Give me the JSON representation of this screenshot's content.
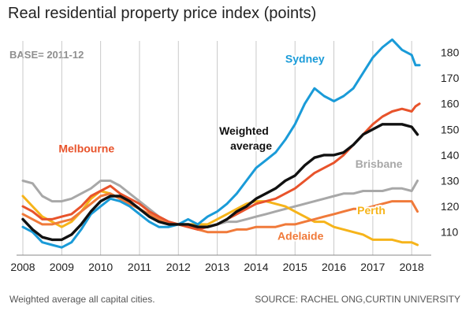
{
  "title": "Real residential property price index (points)",
  "base_note": "BASE= 2011-12",
  "footnote": "Weighted average all capital cities.",
  "source": "SOURCE: RACHEL ONG,CURTIN UNIVERSITY",
  "colors": {
    "sydney": "#1a9bd8",
    "melbourne": "#e8532b",
    "weighted": "#111111",
    "brisbane": "#a8a8a8",
    "perth": "#f6b41a",
    "adelaide": "#f07a3a",
    "grid": "#c9c9c9",
    "axis_text": "#222222"
  },
  "chart_data": {
    "type": "line",
    "xlim": [
      2008,
      2018.3
    ],
    "ylim": [
      101,
      186
    ],
    "x_ticks": [
      2008,
      2009,
      2010,
      2011,
      2012,
      2013,
      2014,
      2015,
      2016,
      2017,
      2018
    ],
    "x_tick_labels": [
      "2008",
      "2009",
      "2010",
      "2011",
      "2012",
      "2013",
      "2014",
      "2015",
      "2016",
      "2017",
      "2018"
    ],
    "y_ticks": [
      110,
      120,
      130,
      140,
      150,
      160,
      170,
      180
    ],
    "y_tick_labels": [
      "110",
      "120",
      "130",
      "140",
      "150",
      "160",
      "170",
      "180"
    ],
    "grid": "vertical gridlines at each year",
    "series": [
      {
        "name": "Brisbane",
        "color_key": "brisbane",
        "label": {
          "text": "Brisbane",
          "x": 2016.55,
          "y": 135
        },
        "points": [
          [
            2008,
            130
          ],
          [
            2008.25,
            129
          ],
          [
            2008.5,
            124
          ],
          [
            2008.75,
            122
          ],
          [
            2009,
            122
          ],
          [
            2009.25,
            123
          ],
          [
            2009.5,
            125
          ],
          [
            2009.75,
            127
          ],
          [
            2010,
            130
          ],
          [
            2010.25,
            130
          ],
          [
            2010.5,
            128
          ],
          [
            2010.75,
            125
          ],
          [
            2011,
            122
          ],
          [
            2011.25,
            119
          ],
          [
            2011.5,
            116
          ],
          [
            2011.75,
            114
          ],
          [
            2012,
            113
          ],
          [
            2012.25,
            112
          ],
          [
            2012.5,
            112
          ],
          [
            2012.75,
            112
          ],
          [
            2013,
            113
          ],
          [
            2013.25,
            114
          ],
          [
            2013.5,
            114
          ],
          [
            2013.75,
            115
          ],
          [
            2014,
            116
          ],
          [
            2014.25,
            117
          ],
          [
            2014.5,
            118
          ],
          [
            2014.75,
            119
          ],
          [
            2015,
            120
          ],
          [
            2015.25,
            121
          ],
          [
            2015.5,
            122
          ],
          [
            2015.75,
            123
          ],
          [
            2016,
            124
          ],
          [
            2016.25,
            125
          ],
          [
            2016.5,
            125
          ],
          [
            2016.75,
            126
          ],
          [
            2017,
            126
          ],
          [
            2017.25,
            126
          ],
          [
            2017.5,
            127
          ],
          [
            2017.75,
            127
          ],
          [
            2018,
            126
          ],
          [
            2018.15,
            130
          ]
        ]
      },
      {
        "name": "Perth",
        "color_key": "perth",
        "label": {
          "text": "Perth",
          "x": 2016.6,
          "y": 117
        },
        "points": [
          [
            2008,
            124
          ],
          [
            2008.25,
            120
          ],
          [
            2008.5,
            116
          ],
          [
            2008.75,
            114
          ],
          [
            2009,
            112
          ],
          [
            2009.25,
            114
          ],
          [
            2009.5,
            118
          ],
          [
            2009.75,
            123
          ],
          [
            2010,
            126
          ],
          [
            2010.25,
            125
          ],
          [
            2010.5,
            123
          ],
          [
            2010.75,
            121
          ],
          [
            2011,
            119
          ],
          [
            2011.25,
            117
          ],
          [
            2011.5,
            114
          ],
          [
            2011.75,
            113
          ],
          [
            2012,
            113
          ],
          [
            2012.25,
            113
          ],
          [
            2012.5,
            113
          ],
          [
            2012.75,
            113
          ],
          [
            2013,
            115
          ],
          [
            2013.25,
            117
          ],
          [
            2013.5,
            119
          ],
          [
            2013.75,
            121
          ],
          [
            2014,
            122
          ],
          [
            2014.25,
            122
          ],
          [
            2014.5,
            121
          ],
          [
            2014.75,
            120
          ],
          [
            2015,
            118
          ],
          [
            2015.25,
            116
          ],
          [
            2015.5,
            114
          ],
          [
            2015.75,
            114
          ],
          [
            2016,
            112
          ],
          [
            2016.25,
            111
          ],
          [
            2016.5,
            110
          ],
          [
            2016.75,
            109
          ],
          [
            2017,
            107
          ],
          [
            2017.25,
            107
          ],
          [
            2017.5,
            107
          ],
          [
            2017.75,
            106
          ],
          [
            2018,
            106
          ],
          [
            2018.15,
            105
          ]
        ]
      },
      {
        "name": "Adelaide",
        "color_key": "adelaide",
        "label": {
          "text": "Adelaide",
          "x": 2014.55,
          "y": 107
        },
        "points": [
          [
            2008,
            117
          ],
          [
            2008.25,
            115
          ],
          [
            2008.5,
            113
          ],
          [
            2008.75,
            113
          ],
          [
            2009,
            114
          ],
          [
            2009.25,
            115
          ],
          [
            2009.5,
            118
          ],
          [
            2009.75,
            121
          ],
          [
            2010,
            124
          ],
          [
            2010.25,
            125
          ],
          [
            2010.5,
            123
          ],
          [
            2010.75,
            121
          ],
          [
            2011,
            119
          ],
          [
            2011.25,
            117
          ],
          [
            2011.5,
            115
          ],
          [
            2011.75,
            113
          ],
          [
            2012,
            113
          ],
          [
            2012.25,
            112
          ],
          [
            2012.5,
            111
          ],
          [
            2012.75,
            110
          ],
          [
            2013,
            110
          ],
          [
            2013.25,
            110
          ],
          [
            2013.5,
            111
          ],
          [
            2013.75,
            111
          ],
          [
            2014,
            112
          ],
          [
            2014.25,
            112
          ],
          [
            2014.5,
            112
          ],
          [
            2014.75,
            113
          ],
          [
            2015,
            113
          ],
          [
            2015.25,
            114
          ],
          [
            2015.5,
            115
          ],
          [
            2015.75,
            116
          ],
          [
            2016,
            117
          ],
          [
            2016.25,
            118
          ],
          [
            2016.5,
            119
          ],
          [
            2016.75,
            119
          ],
          [
            2017,
            120
          ],
          [
            2017.25,
            121
          ],
          [
            2017.5,
            122
          ],
          [
            2017.75,
            122
          ],
          [
            2018,
            122
          ],
          [
            2018.15,
            118
          ]
        ]
      },
      {
        "name": "Sydney",
        "color_key": "sydney",
        "label": {
          "text": "Sydney",
          "x": 2014.75,
          "y": 176
        },
        "points": [
          [
            2008,
            112
          ],
          [
            2008.25,
            110
          ],
          [
            2008.5,
            106
          ],
          [
            2008.75,
            105
          ],
          [
            2009,
            104
          ],
          [
            2009.25,
            106
          ],
          [
            2009.5,
            111
          ],
          [
            2009.75,
            117
          ],
          [
            2010,
            120
          ],
          [
            2010.25,
            123
          ],
          [
            2010.5,
            122
          ],
          [
            2010.75,
            120
          ],
          [
            2011,
            117
          ],
          [
            2011.25,
            114
          ],
          [
            2011.5,
            112
          ],
          [
            2011.75,
            112
          ],
          [
            2012,
            113
          ],
          [
            2012.25,
            115
          ],
          [
            2012.5,
            113
          ],
          [
            2012.75,
            116
          ],
          [
            2013,
            118
          ],
          [
            2013.25,
            121
          ],
          [
            2013.5,
            125
          ],
          [
            2013.75,
            130
          ],
          [
            2014,
            135
          ],
          [
            2014.25,
            138
          ],
          [
            2014.5,
            141
          ],
          [
            2014.75,
            146
          ],
          [
            2015,
            152
          ],
          [
            2015.25,
            160
          ],
          [
            2015.5,
            166
          ],
          [
            2015.75,
            163
          ],
          [
            2016,
            161
          ],
          [
            2016.25,
            163
          ],
          [
            2016.5,
            166
          ],
          [
            2016.75,
            172
          ],
          [
            2017,
            178
          ],
          [
            2017.25,
            182
          ],
          [
            2017.5,
            185
          ],
          [
            2017.75,
            181
          ],
          [
            2018,
            179
          ],
          [
            2018.1,
            175
          ],
          [
            2018.2,
            175
          ]
        ]
      },
      {
        "name": "Melbourne",
        "color_key": "melbourne",
        "label": {
          "text": "Melbourne",
          "x": 2008.92,
          "y": 141
        },
        "points": [
          [
            2008,
            120
          ],
          [
            2008.25,
            118
          ],
          [
            2008.5,
            115
          ],
          [
            2008.75,
            115
          ],
          [
            2009,
            116
          ],
          [
            2009.25,
            117
          ],
          [
            2009.5,
            120
          ],
          [
            2009.75,
            124
          ],
          [
            2010,
            126
          ],
          [
            2010.25,
            128
          ],
          [
            2010.5,
            125
          ],
          [
            2010.75,
            123
          ],
          [
            2011,
            121
          ],
          [
            2011.25,
            118
          ],
          [
            2011.5,
            116
          ],
          [
            2011.75,
            114
          ],
          [
            2012,
            113
          ],
          [
            2012.25,
            112
          ],
          [
            2012.5,
            111
          ],
          [
            2012.75,
            112
          ],
          [
            2013,
            113
          ],
          [
            2013.25,
            115
          ],
          [
            2013.5,
            117
          ],
          [
            2013.75,
            119
          ],
          [
            2014,
            121
          ],
          [
            2014.25,
            122
          ],
          [
            2014.5,
            123
          ],
          [
            2014.75,
            125
          ],
          [
            2015,
            127
          ],
          [
            2015.25,
            130
          ],
          [
            2015.5,
            133
          ],
          [
            2015.75,
            135
          ],
          [
            2016,
            137
          ],
          [
            2016.25,
            140
          ],
          [
            2016.5,
            144
          ],
          [
            2016.75,
            148
          ],
          [
            2017,
            152
          ],
          [
            2017.25,
            155
          ],
          [
            2017.5,
            157
          ],
          [
            2017.75,
            158
          ],
          [
            2018,
            157
          ],
          [
            2018.1,
            159
          ],
          [
            2018.2,
            160
          ]
        ]
      },
      {
        "name": "Weighted average",
        "color_key": "weighted",
        "label": {
          "text": "Weighted",
          "text2": "average",
          "x": 2013.05,
          "y": 148
        },
        "points": [
          [
            2008,
            115
          ],
          [
            2008.25,
            111
          ],
          [
            2008.5,
            108
          ],
          [
            2008.75,
            107
          ],
          [
            2009,
            107
          ],
          [
            2009.25,
            109
          ],
          [
            2009.5,
            113
          ],
          [
            2009.75,
            118
          ],
          [
            2010,
            122
          ],
          [
            2010.25,
            124
          ],
          [
            2010.5,
            124
          ],
          [
            2010.75,
            122
          ],
          [
            2011,
            119
          ],
          [
            2011.25,
            116
          ],
          [
            2011.5,
            114
          ],
          [
            2011.75,
            113
          ],
          [
            2012,
            113
          ],
          [
            2012.25,
            113
          ],
          [
            2012.5,
            112
          ],
          [
            2012.75,
            112
          ],
          [
            2013,
            113
          ],
          [
            2013.25,
            115
          ],
          [
            2013.5,
            118
          ],
          [
            2013.75,
            120
          ],
          [
            2014,
            123
          ],
          [
            2014.25,
            125
          ],
          [
            2014.5,
            127
          ],
          [
            2014.75,
            130
          ],
          [
            2015,
            132
          ],
          [
            2015.25,
            136
          ],
          [
            2015.5,
            139
          ],
          [
            2015.75,
            140
          ],
          [
            2016,
            140
          ],
          [
            2016.25,
            141
          ],
          [
            2016.5,
            144
          ],
          [
            2016.75,
            148
          ],
          [
            2017,
            150
          ],
          [
            2017.25,
            152
          ],
          [
            2017.5,
            152
          ],
          [
            2017.75,
            152
          ],
          [
            2018,
            151
          ],
          [
            2018.15,
            148
          ]
        ]
      }
    ]
  }
}
